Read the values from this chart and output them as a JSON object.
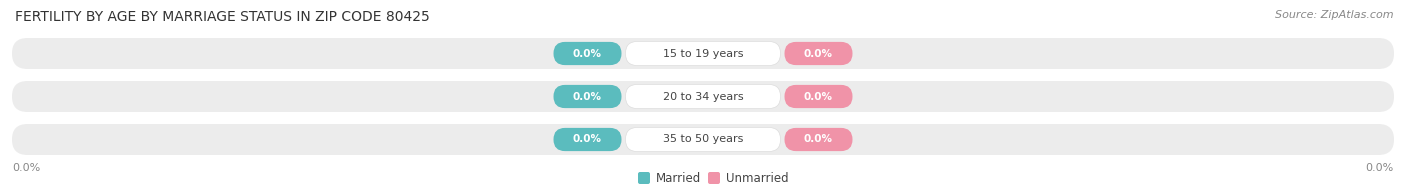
{
  "title": "FERTILITY BY AGE BY MARRIAGE STATUS IN ZIP CODE 80425",
  "source": "Source: ZipAtlas.com",
  "age_groups": [
    "15 to 19 years",
    "20 to 34 years",
    "35 to 50 years"
  ],
  "married_color": "#5bbcbe",
  "unmarried_color": "#f093a8",
  "bar_bg_color": "#ececec",
  "label_text": "0.0%",
  "axis_label_left": "0.0%",
  "axis_label_right": "0.0%",
  "legend_married": "Married",
  "legend_unmarried": "Unmarried",
  "title_fontsize": 10,
  "source_fontsize": 8,
  "figsize": [
    14.06,
    1.96
  ],
  "dpi": 100,
  "bg_color": "#ffffff"
}
